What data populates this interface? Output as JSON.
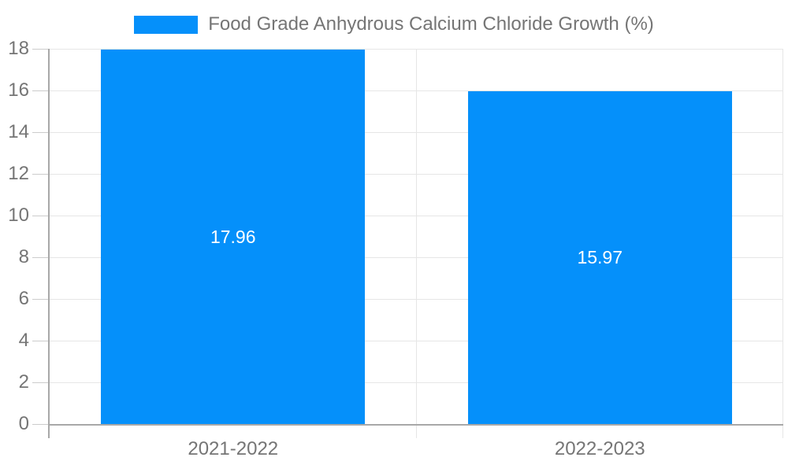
{
  "chart_data": {
    "type": "bar",
    "legend": "Food Grade Anhydrous Calcium Chloride Growth (%)",
    "categories": [
      "2021-2022",
      "2022-2023"
    ],
    "series": [
      {
        "name": "Food Grade Anhydrous Calcium Chloride Growth (%)",
        "values": [
          17.96,
          15.97
        ]
      }
    ],
    "data_labels": [
      "17.96",
      "15.97"
    ],
    "ylim": [
      0,
      18
    ],
    "ytick_step": 2,
    "yticks": [
      0,
      2,
      4,
      6,
      8,
      10,
      12,
      14,
      16,
      18
    ],
    "grid": true,
    "legend_position": "top-center",
    "bar_width_fraction": 0.72,
    "colors": {
      "bar": "#0590fa",
      "text": "#757575",
      "grid": "#e6e6e6",
      "axis": "#a8a8a8",
      "tick": "#cccccc",
      "data_label": "#ffffff",
      "background": "#ffffff"
    }
  }
}
